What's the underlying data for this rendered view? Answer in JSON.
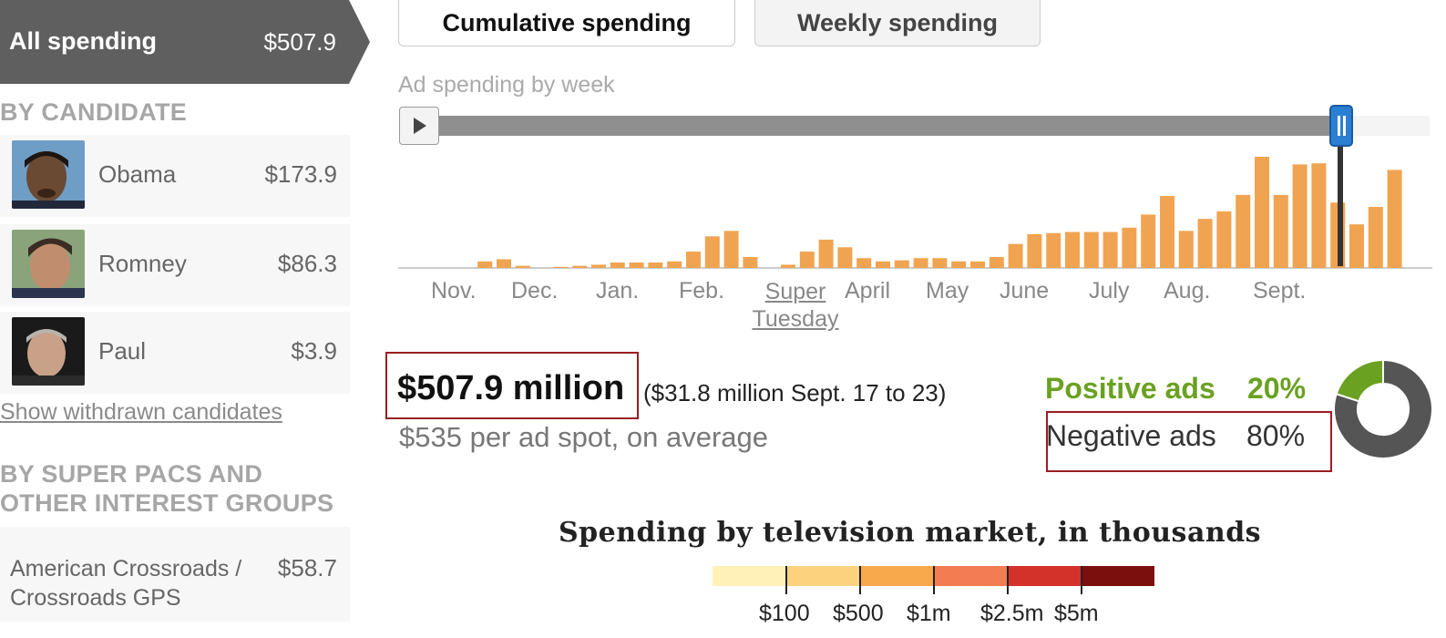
{
  "sidebar": {
    "all_spending": {
      "label": "All spending",
      "amount": "$507.9"
    },
    "by_candidate_heading": "BY CANDIDATE",
    "candidates": [
      {
        "name": "Obama",
        "amount": "$173.9"
      },
      {
        "name": "Romney",
        "amount": "$86.3"
      },
      {
        "name": "Paul",
        "amount": "$3.9"
      }
    ],
    "withdrawn_link": "Show withdrawn candidates",
    "groups_heading_line1": "BY SUPER PACS AND",
    "groups_heading_line2": "OTHER INTEREST GROUPS",
    "groups": [
      {
        "name": "American Crossroads / Crossroads GPS",
        "amount": "$58.7"
      }
    ]
  },
  "tabs": {
    "cumulative": "Cumulative spending",
    "weekly": "Weekly spending"
  },
  "chart_subtitle": "Ad spending by week",
  "timeline": {
    "progress": 0.92
  },
  "chart_data": {
    "type": "bar",
    "title": "",
    "xlabel": "",
    "ylabel": "",
    "month_labels": [
      "Nov.",
      "Dec.",
      "Jan.",
      "Feb.",
      "Super Tuesday",
      "April",
      "May",
      "June",
      "July",
      "Aug.",
      "Sept."
    ],
    "series": [
      {
        "values": [
          0,
          0,
          0,
          0,
          6,
          8,
          2,
          0,
          1,
          2,
          3,
          5,
          5,
          5,
          6,
          15,
          29,
          34,
          10,
          0,
          3,
          15,
          26,
          19,
          9,
          6,
          7,
          9,
          9,
          6,
          6,
          10,
          22,
          31,
          32,
          33,
          33,
          33,
          37,
          49,
          66,
          34,
          45,
          52,
          67,
          102,
          67,
          95,
          96,
          60,
          40,
          56,
          90
        ]
      }
    ],
    "bar_color": "#f0a451",
    "grid": false
  },
  "summary": {
    "total": "$507.9 million",
    "weekly": "($31.8 million Sept. 17 to 23)",
    "average": "$535 per ad spot, on average"
  },
  "tone": {
    "positive_label": "Positive ads",
    "positive_pct": "20%",
    "negative_label": "Negative ads",
    "negative_pct": "80%",
    "positive_value": 0.2,
    "positive_color": "#6aa121",
    "negative_color": "#555555"
  },
  "legend": {
    "title": "Spending by television market, in thousands",
    "colors": [
      "#fff1b8",
      "#fdd27f",
      "#f7a94c",
      "#f37c52",
      "#d3322a",
      "#7b0f0d"
    ],
    "labels": [
      "$100",
      "$500",
      "$1m",
      "$2.5m",
      "$5m"
    ]
  }
}
